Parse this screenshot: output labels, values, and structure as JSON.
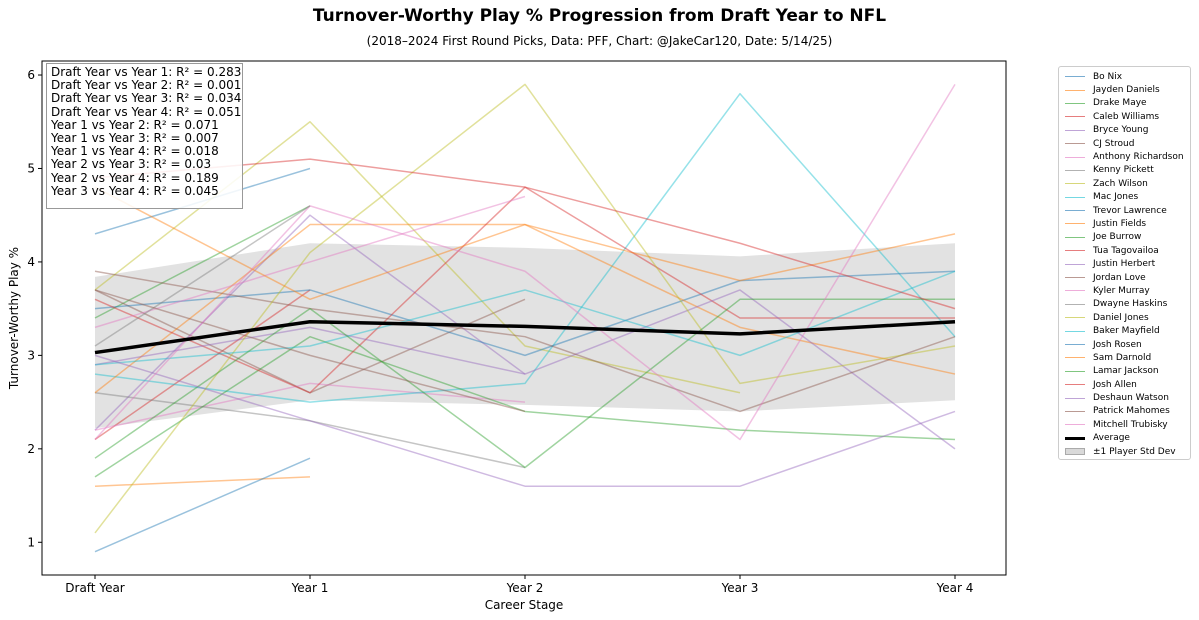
{
  "chart_data": {
    "type": "line",
    "title": "Turnover-Worthy Play % Progression from Draft Year to NFL",
    "subtitle": "(2018–2024 First Round Picks, Data: PFF, Chart: @JakeCar120, Date: 5/14/25)",
    "xlabel": "Career Stage",
    "ylabel": "Turnover-Worthy Play %",
    "categories": [
      "Draft Year",
      "Year 1",
      "Year 2",
      "Year 3",
      "Year 4"
    ],
    "ylim": [
      0.65,
      6.15
    ],
    "yticks": [
      "1",
      "2",
      "3",
      "4",
      "5",
      "6"
    ],
    "grid": false,
    "legend_position": "outside-right",
    "annotation_lines": [
      "Draft Year vs Year 1: R² = 0.283",
      "Draft Year vs Year 2: R² = 0.001",
      "Draft Year vs Year 3: R² = 0.034",
      "Draft Year vs Year 4: R² = 0.051",
      "Year 1 vs Year 2: R² = 0.071",
      "Year 1 vs Year 3: R² = 0.007",
      "Year 1 vs Year 4: R² = 0.018",
      "Year 2 vs Year 3: R² = 0.03",
      "Year 2 vs Year 4: R² = 0.189",
      "Year 3 vs Year 4: R² = 0.045"
    ],
    "series": [
      {
        "name": "Bo Nix",
        "color": "#1f77b4",
        "values": [
          4.3,
          5.0,
          null,
          null,
          null
        ]
      },
      {
        "name": "Jayden Daniels",
        "color": "#ff7f0e",
        "values": [
          1.6,
          1.7,
          null,
          null,
          null
        ]
      },
      {
        "name": "Drake Maye",
        "color": "#2ca02c",
        "values": [
          3.4,
          4.6,
          null,
          null,
          null
        ]
      },
      {
        "name": "Caleb Williams",
        "color": "#d62728",
        "values": [
          2.1,
          3.7,
          null,
          null,
          null
        ]
      },
      {
        "name": "Bryce Young",
        "color": "#9467bd",
        "values": [
          2.2,
          4.5,
          2.8,
          null,
          null
        ]
      },
      {
        "name": "CJ Stroud",
        "color": "#8c564b",
        "values": [
          3.7,
          2.6,
          3.6,
          null,
          null
        ]
      },
      {
        "name": "Anthony Richardson",
        "color": "#e377c2",
        "values": [
          2.2,
          2.7,
          2.5,
          null,
          null
        ]
      },
      {
        "name": "Kenny Pickett",
        "color": "#7f7f7f",
        "values": [
          2.6,
          2.3,
          1.8,
          null,
          null
        ]
      },
      {
        "name": "Zach Wilson",
        "color": "#bcbd22",
        "values": [
          3.7,
          5.5,
          3.1,
          2.6,
          null
        ]
      },
      {
        "name": "Mac Jones",
        "color": "#17becf",
        "values": [
          2.8,
          2.5,
          2.7,
          5.8,
          3.2
        ]
      },
      {
        "name": "Trevor Lawrence",
        "color": "#1f77b4",
        "values": [
          3.5,
          3.7,
          3.0,
          3.8,
          3.9
        ]
      },
      {
        "name": "Justin Fields",
        "color": "#ff7f0e",
        "values": [
          2.6,
          4.4,
          4.4,
          3.3,
          2.8
        ]
      },
      {
        "name": "Joe Burrow",
        "color": "#2ca02c",
        "values": [
          1.7,
          3.2,
          2.4,
          2.2,
          2.1
        ]
      },
      {
        "name": "Tua Tagovailoa",
        "color": "#d62728",
        "values": [
          3.6,
          2.6,
          4.8,
          3.4,
          3.4
        ]
      },
      {
        "name": "Justin Herbert",
        "color": "#9467bd",
        "values": [
          2.9,
          3.3,
          2.8,
          3.7,
          2.0
        ]
      },
      {
        "name": "Jordan Love",
        "color": "#8c564b",
        "values": [
          3.9,
          3.5,
          3.2,
          2.4,
          3.2
        ]
      },
      {
        "name": "Kyler Murray",
        "color": "#e377c2",
        "values": [
          3.3,
          4.0,
          4.7,
          null,
          null
        ]
      },
      {
        "name": "Dwayne Haskins",
        "color": "#7f7f7f",
        "values": [
          3.1,
          4.6,
          null,
          null,
          null
        ]
      },
      {
        "name": "Daniel Jones",
        "color": "#bcbd22",
        "values": [
          1.1,
          4.1,
          5.9,
          2.7,
          3.1
        ]
      },
      {
        "name": "Baker Mayfield",
        "color": "#17becf",
        "values": [
          2.9,
          3.1,
          3.7,
          3.0,
          3.9
        ]
      },
      {
        "name": "Josh Rosen",
        "color": "#1f77b4",
        "values": [
          0.9,
          1.9,
          null,
          null,
          null
        ]
      },
      {
        "name": "Sam Darnold",
        "color": "#ff7f0e",
        "values": [
          4.8,
          3.6,
          4.4,
          3.8,
          4.3
        ]
      },
      {
        "name": "Lamar Jackson",
        "color": "#2ca02c",
        "values": [
          1.9,
          3.5,
          1.8,
          3.6,
          3.6
        ]
      },
      {
        "name": "Josh Allen",
        "color": "#d62728",
        "values": [
          4.9,
          5.1,
          4.8,
          4.2,
          3.5
        ]
      },
      {
        "name": "Deshaun Watson",
        "color": "#9467bd",
        "values": [
          3.0,
          2.3,
          1.6,
          1.6,
          2.4
        ]
      },
      {
        "name": "Patrick Mahomes",
        "color": "#8c564b",
        "values": [
          3.7,
          3.0,
          2.4,
          null,
          null
        ]
      },
      {
        "name": "Mitchell Trubisky",
        "color": "#e377c2",
        "values": [
          2.1,
          4.6,
          3.9,
          2.1,
          5.9
        ]
      }
    ],
    "average": {
      "name": "Average",
      "color": "#000000",
      "values": [
        3.03,
        3.36,
        3.31,
        3.23,
        3.36
      ]
    },
    "std_band": {
      "name": "±1 Player Std Dev",
      "color": "#d3d3d3",
      "lower": [
        2.22,
        2.52,
        2.47,
        2.4,
        2.52
      ],
      "upper": [
        3.84,
        4.2,
        4.15,
        4.06,
        4.2
      ]
    }
  }
}
